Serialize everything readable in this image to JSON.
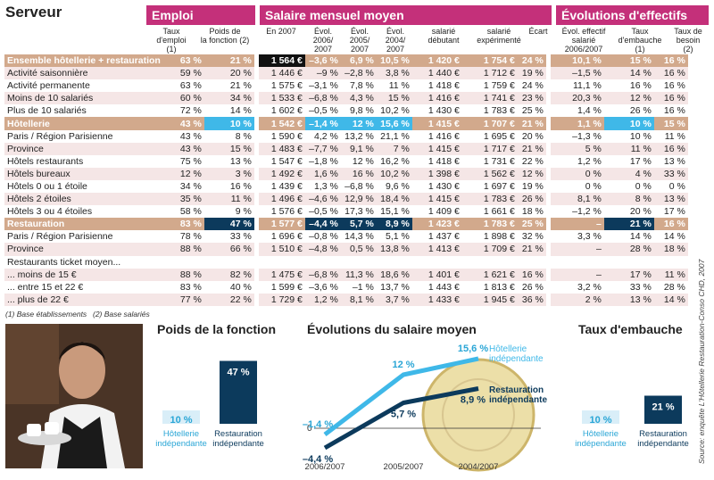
{
  "title": "Serveur",
  "sections": {
    "emploi": "Emploi",
    "salaire": "Salaire mensuel moyen",
    "evolutions": "Évolutions d'effectifs"
  },
  "col_headers": [
    "Taux\nd'emploi (1)",
    "Poids de\nla fonction (2)",
    "En 2007",
    "Évol.\n2006/\n2007",
    "Évol.\n2005/\n2007",
    "Évol.\n2004/\n2007",
    "salarié\ndébutant",
    "salarié\nexpérimenté",
    "Écart",
    "Évol. effectif\nsalarié\n2006/2007",
    "Taux\nd'embauche\n(1)",
    "Taux de\nbesoin\n(2)"
  ],
  "rows": [
    {
      "label": "Ensemble hôtellerie + restauration",
      "type": "group",
      "v": [
        "63 %",
        "21 %",
        "1 564 €",
        "–3,6 %",
        "6,9 %",
        "10,5 %",
        "1 420 €",
        "1 754 €",
        "24 %",
        "10,1 %",
        "15 %",
        "16 %"
      ]
    },
    {
      "label": "Activité saisonnière",
      "type": "band",
      "v": [
        "59 %",
        "20 %",
        "1 446 €",
        "–9 %",
        "–2,8 %",
        "3,8 %",
        "1 440 €",
        "1 712 €",
        "19 %",
        "–1,5 %",
        "14 %",
        "16 %"
      ]
    },
    {
      "label": "Activité permanente",
      "type": "white",
      "v": [
        "63 %",
        "21 %",
        "1 575 €",
        "–3,1 %",
        "7,8 %",
        "11 %",
        "1 418 €",
        "1 759 €",
        "24 %",
        "11,1 %",
        "16 %",
        "16 %"
      ]
    },
    {
      "label": "Moins de 10 salariés",
      "type": "band",
      "v": [
        "60 %",
        "34 %",
        "1 533 €",
        "–6,8 %",
        "4,3 %",
        "15 %",
        "1 416 €",
        "1 741 €",
        "23 %",
        "20,3 %",
        "12 %",
        "16 %"
      ]
    },
    {
      "label": "Plus de 10 salariés",
      "type": "white",
      "v": [
        "72 %",
        "14 %",
        "1 602 €",
        "–0,5 %",
        "9,8 %",
        "10,2 %",
        "1 430 €",
        "1 783 €",
        "25 %",
        "1,4 %",
        "26 %",
        "16 %"
      ]
    },
    {
      "label": "Hôtellerie",
      "type": "group",
      "v": [
        "43 %",
        "10 %",
        "1 542 €",
        "–1,4 %",
        "12 %",
        "15,6 %",
        "1 415 €",
        "1 707 €",
        "21 %",
        "1,1 %",
        "10 %",
        "15 %"
      ]
    },
    {
      "label": "Paris / Région Parisienne",
      "type": "white",
      "v": [
        "43 %",
        "8 %",
        "1 590 €",
        "4,2 %",
        "13,2 %",
        "21,1 %",
        "1 416 €",
        "1 695 €",
        "20 %",
        "–1,3 %",
        "10 %",
        "11 %"
      ]
    },
    {
      "label": "Province",
      "type": "band",
      "v": [
        "43 %",
        "15 %",
        "1 483 €",
        "–7,7 %",
        "9,1 %",
        "7 %",
        "1 415 €",
        "1 717 €",
        "21 %",
        "5 %",
        "11 %",
        "16 %"
      ]
    },
    {
      "label": "Hôtels restaurants",
      "type": "white",
      "v": [
        "75 %",
        "13 %",
        "1 547 €",
        "–1,8 %",
        "12 %",
        "16,2 %",
        "1 418 €",
        "1 731 €",
        "22 %",
        "1,2 %",
        "17 %",
        "13 %"
      ]
    },
    {
      "label": "Hôtels bureaux",
      "type": "band",
      "v": [
        "12 %",
        "3 %",
        "1 492 €",
        "1,6 %",
        "16 %",
        "10,2 %",
        "1 398 €",
        "1 562 €",
        "12 %",
        "0 %",
        "4 %",
        "33 %"
      ]
    },
    {
      "label": "Hôtels 0 ou 1 étoile",
      "type": "white",
      "v": [
        "34 %",
        "16 %",
        "1 439 €",
        "1,3 %",
        "–6,8 %",
        "9,6 %",
        "1 430 €",
        "1 697 €",
        "19 %",
        "0 %",
        "0 %",
        "0 %"
      ]
    },
    {
      "label": "Hôtels 2 étoiles",
      "type": "band",
      "v": [
        "35 %",
        "11 %",
        "1 496 €",
        "–4,6 %",
        "12,9 %",
        "18,4 %",
        "1 415 €",
        "1 783 €",
        "26 %",
        "8,1 %",
        "8 %",
        "13 %"
      ]
    },
    {
      "label": "Hôtels 3 ou 4 étoiles",
      "type": "white",
      "v": [
        "58 %",
        "9 %",
        "1 576 €",
        "–0,5 %",
        "17,3 %",
        "15,1 %",
        "1 409 €",
        "1 661 €",
        "18 %",
        "–1,2 %",
        "20 %",
        "17 %"
      ]
    },
    {
      "label": "Restauration",
      "type": "group",
      "v": [
        "83 %",
        "47 %",
        "1 577 €",
        "–4,4 %",
        "5,7 %",
        "8,9 %",
        "1 423 €",
        "1 783 €",
        "25 %",
        "–",
        "21 %",
        "16 %"
      ]
    },
    {
      "label": "Paris / Région Parisienne",
      "type": "white",
      "v": [
        "78 %",
        "33 %",
        "1 696 €",
        "–0,8 %",
        "14,3 %",
        "5,1 %",
        "1 437 €",
        "1 898 €",
        "32 %",
        "3,3 %",
        "14 %",
        "14 %"
      ]
    },
    {
      "label": "Province",
      "type": "band",
      "v": [
        "88 %",
        "66 %",
        "1 510 €",
        "–4,8 %",
        "0,5 %",
        "13,8 %",
        "1 413 €",
        "1 709 €",
        "21 %",
        "–",
        "28 %",
        "18 %"
      ]
    },
    {
      "label": "Restaurants ticket moyen...",
      "type": "white",
      "v": [
        "",
        "",
        "",
        "",
        "",
        "",
        "",
        "",
        "",
        "",
        "",
        ""
      ]
    },
    {
      "label": "... moins de 15 €",
      "type": "band",
      "v": [
        "88 %",
        "82 %",
        "1 475 €",
        "–6,8 %",
        "11,3 %",
        "18,6 %",
        "1 401 €",
        "1 621 €",
        "16 %",
        "–",
        "17 %",
        "11 %"
      ]
    },
    {
      "label": "... entre 15 et 22 €",
      "type": "white",
      "v": [
        "83 %",
        "40 %",
        "1 599 €",
        "–3,6 %",
        "–1 %",
        "13,7 %",
        "1 443 €",
        "1 813 €",
        "26 %",
        "3,2 %",
        "33 %",
        "28 %"
      ]
    },
    {
      "label": "... plus de 22 €",
      "type": "band",
      "v": [
        "77 %",
        "22 %",
        "1 729 €",
        "1,2 %",
        "8,1 %",
        "3,7 %",
        "1 433 €",
        "1 945 €",
        "36 %",
        "2 %",
        "13 %",
        "14 %"
      ]
    }
  ],
  "footnotes": {
    "f1": "(1) Base établissements",
    "f2": "(2) Base salariés"
  },
  "source": "Source: enquête L'Hôtellerie Restauration-Conso CHD, 2007",
  "colors": {
    "pink": "#c4307a",
    "tan": "#d2a98c",
    "navy": "#0c3a5c",
    "cyan": "#3fb8e8",
    "band": "#f5e6e6"
  },
  "chart_data": [
    {
      "type": "bar",
      "title": "Poids de la fonction",
      "categories": [
        "Hôtellerie indépendante",
        "Restauration indépendante"
      ],
      "values": [
        10,
        47
      ],
      "value_labels": [
        "10 %",
        "47 %"
      ],
      "ylim": [
        0,
        50
      ]
    },
    {
      "type": "line",
      "title": "Évolutions du salaire moyen",
      "x": [
        "2006/2007",
        "2005/2007",
        "2004/2007"
      ],
      "series": [
        {
          "name": "Hôtellerie indépendante",
          "values": [
            -1.4,
            12,
            15.6
          ],
          "value_labels": [
            "–1,4 %",
            "12 %",
            "15,6 %"
          ]
        },
        {
          "name": "Restauration indépendante",
          "values": [
            -4.4,
            5.7,
            8.9
          ],
          "value_labels": [
            "–4,4 %",
            "5,7 %",
            "8,9 %"
          ]
        }
      ],
      "zero_label": "0",
      "ylim": [
        -6,
        18
      ]
    },
    {
      "type": "bar",
      "title": "Taux d'embauche",
      "categories": [
        "Hôtellerie indépendante",
        "Restauration indépendante"
      ],
      "values": [
        10,
        21
      ],
      "value_labels": [
        "10 %",
        "21 %"
      ],
      "ylim": [
        0,
        50
      ]
    }
  ]
}
